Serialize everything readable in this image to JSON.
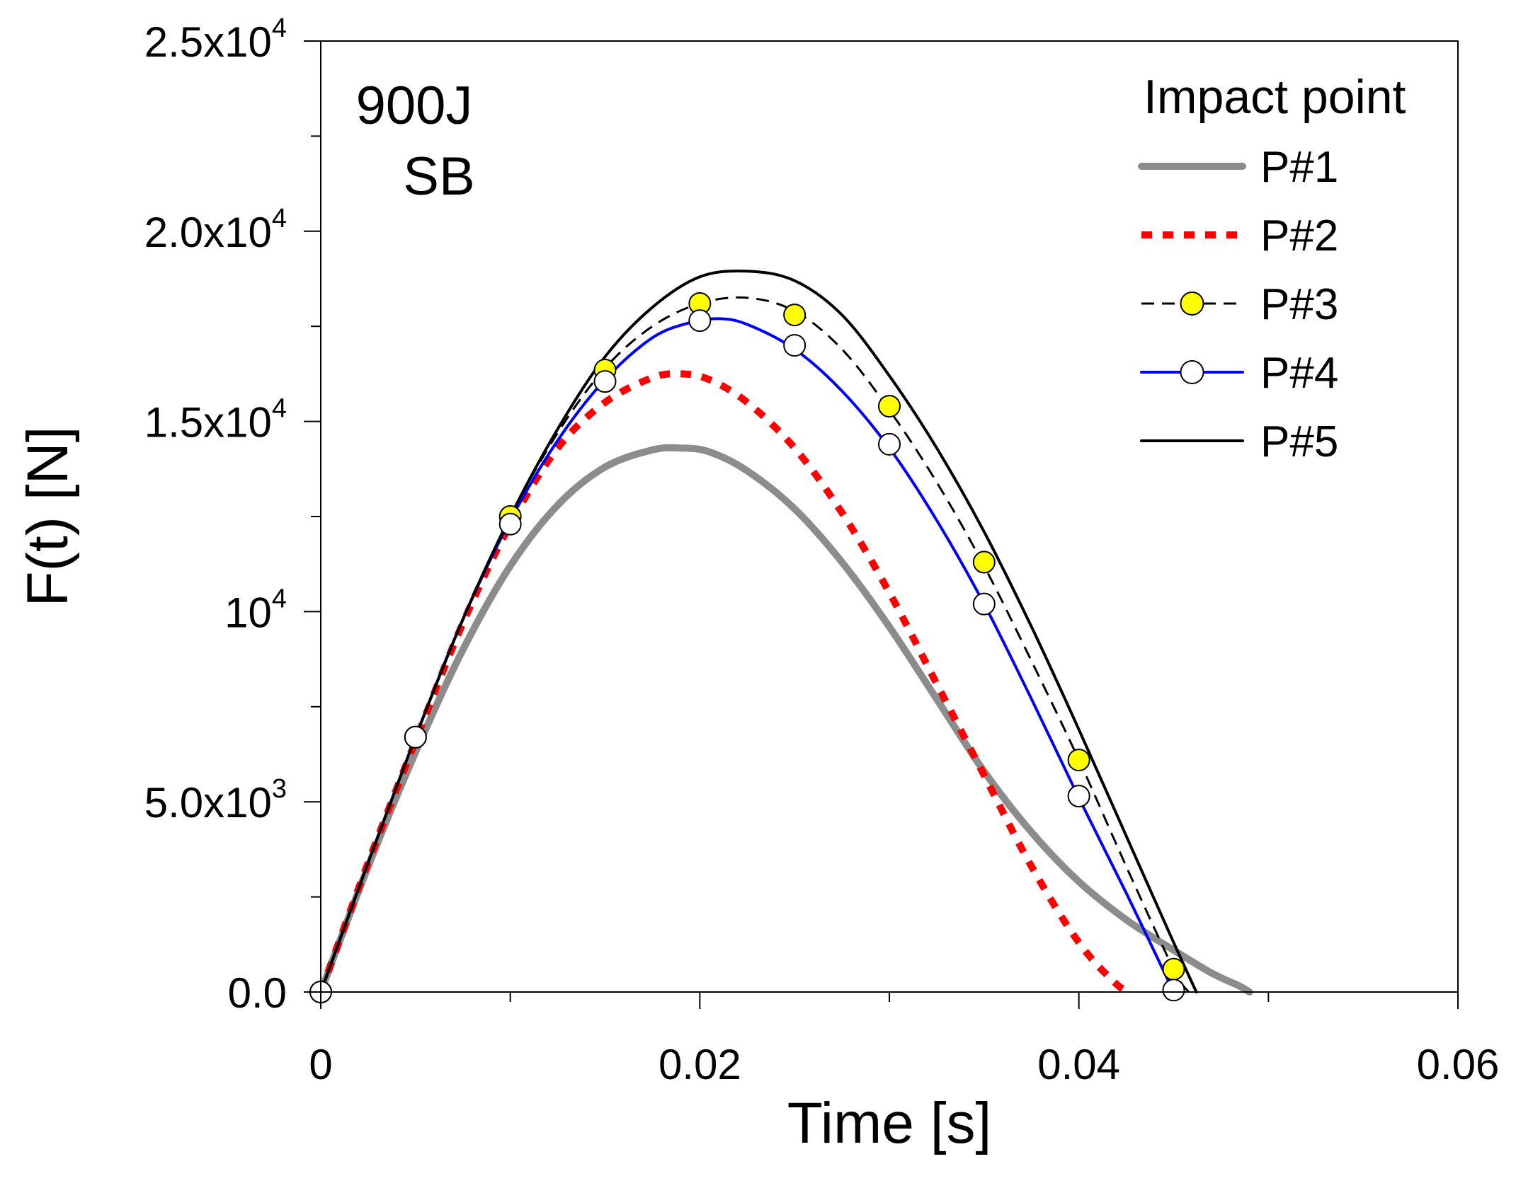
{
  "chart_data": {
    "type": "line",
    "title": "",
    "annotation": [
      "900J",
      "SB"
    ],
    "xlabel": "Time [s]",
    "ylabel": "F(t)  [N]",
    "xlim": [
      0,
      0.06
    ],
    "ylim": [
      0,
      25000
    ],
    "x_ticks": [
      {
        "value": 0,
        "label": "0"
      },
      {
        "value": 0.02,
        "label": "0.02"
      },
      {
        "value": 0.04,
        "label": "0.04"
      },
      {
        "value": 0.06,
        "label": "0.06"
      }
    ],
    "x_minor_ticks": [
      0.01,
      0.03,
      0.05
    ],
    "y_ticks": [
      {
        "value": 0,
        "base": "0.0",
        "exp": ""
      },
      {
        "value": 5000,
        "base": "5.0x10",
        "exp": "3"
      },
      {
        "value": 10000,
        "base": "10",
        "exp": "4"
      },
      {
        "value": 15000,
        "base": "1.5x10",
        "exp": "4"
      },
      {
        "value": 20000,
        "base": "2.0x10",
        "exp": "4"
      },
      {
        "value": 25000,
        "base": "2.5x10",
        "exp": "4"
      }
    ],
    "y_minor_ticks": [
      2500,
      7500,
      12500,
      17500,
      22500
    ],
    "legend": {
      "title": "Impact point",
      "position": "top-right"
    },
    "series": [
      {
        "name": "P#1",
        "color": "#8c8c8c",
        "style": "solid-thick",
        "marker": "none",
        "x": [
          0,
          0.0025,
          0.005,
          0.0075,
          0.01,
          0.0125,
          0.015,
          0.0175,
          0.019,
          0.0205,
          0.0225,
          0.025,
          0.0275,
          0.03,
          0.0325,
          0.035,
          0.0375,
          0.04,
          0.0425,
          0.045,
          0.047,
          0.0485,
          0.049
        ],
        "y": [
          0,
          3300,
          6300,
          9000,
          11200,
          12800,
          13800,
          14250,
          14300,
          14200,
          13700,
          12700,
          11300,
          9600,
          7700,
          5800,
          4200,
          2900,
          1900,
          1100,
          500,
          150,
          0
        ]
      },
      {
        "name": "P#2",
        "color": "#ff0000",
        "style": "dotted-thick",
        "marker": "none",
        "x": [
          0,
          0.0025,
          0.005,
          0.0075,
          0.01,
          0.0125,
          0.015,
          0.0175,
          0.019,
          0.0205,
          0.0225,
          0.025,
          0.0275,
          0.03,
          0.0325,
          0.035,
          0.0375,
          0.04,
          0.042,
          0.0428
        ],
        "y": [
          0,
          3400,
          6600,
          9700,
          12300,
          14300,
          15500,
          16150,
          16250,
          16100,
          15500,
          14300,
          12600,
          10500,
          8100,
          5700,
          3300,
          1300,
          200,
          0
        ]
      },
      {
        "name": "P#3",
        "color": "#000000",
        "style": "dashed",
        "marker": "yellow-circle",
        "x": [
          0,
          0.0025,
          0.005,
          0.0075,
          0.01,
          0.0125,
          0.015,
          0.0175,
          0.02,
          0.0225,
          0.025,
          0.0275,
          0.03,
          0.0325,
          0.035,
          0.0375,
          0.04,
          0.0425,
          0.045,
          0.0458
        ],
        "y": [
          0,
          3400,
          6700,
          9800,
          12500,
          14700,
          16400,
          17500,
          18100,
          18250,
          17900,
          16900,
          15300,
          13400,
          11200,
          8700,
          6100,
          3300,
          600,
          0
        ],
        "marker_x": [
          0,
          0.005,
          0.01,
          0.015,
          0.02,
          0.025,
          0.03,
          0.035,
          0.04,
          0.045
        ],
        "marker_y": [
          0,
          6700,
          12500,
          16350,
          18100,
          17800,
          15400,
          11300,
          6100,
          600
        ]
      },
      {
        "name": "P#4",
        "color": "#0000ff",
        "style": "solid",
        "marker": "white-circle",
        "x": [
          0,
          0.0025,
          0.005,
          0.0075,
          0.01,
          0.0125,
          0.015,
          0.0175,
          0.0195,
          0.021,
          0.0225,
          0.025,
          0.0275,
          0.03,
          0.0325,
          0.035,
          0.0375,
          0.04,
          0.0425,
          0.045
        ],
        "y": [
          0,
          3400,
          6700,
          9800,
          12400,
          14500,
          16100,
          17200,
          17600,
          17700,
          17550,
          16900,
          15800,
          14300,
          12400,
          10200,
          7700,
          5100,
          2600,
          0
        ],
        "marker_x": [
          0,
          0.005,
          0.01,
          0.015,
          0.02,
          0.025,
          0.03,
          0.035,
          0.04,
          0.045
        ],
        "marker_y": [
          0,
          6700,
          12300,
          16050,
          17650,
          17000,
          14400,
          10200,
          5150,
          50
        ]
      },
      {
        "name": "P#5",
        "color": "#000000",
        "style": "solid",
        "marker": "none",
        "x": [
          0,
          0.0025,
          0.005,
          0.0075,
          0.01,
          0.0125,
          0.015,
          0.0175,
          0.02,
          0.0225,
          0.025,
          0.0275,
          0.03,
          0.0325,
          0.035,
          0.0375,
          0.04,
          0.0425,
          0.045,
          0.0462
        ],
        "y": [
          0,
          3400,
          6700,
          9800,
          12500,
          14800,
          16700,
          18000,
          18800,
          18950,
          18700,
          17800,
          16200,
          14300,
          12100,
          9600,
          6900,
          4100,
          1300,
          0
        ]
      }
    ]
  }
}
